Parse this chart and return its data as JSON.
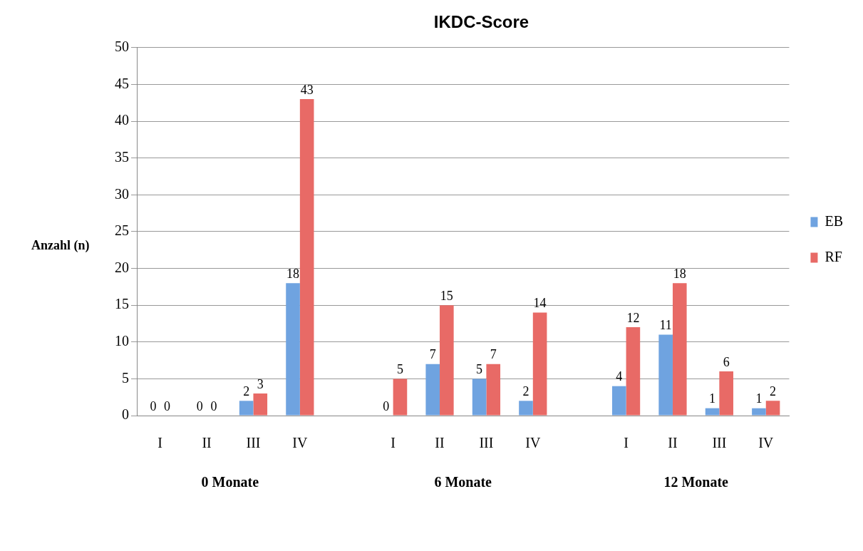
{
  "chart_data": {
    "type": "bar",
    "title": "IKDC-Score",
    "ylabel": "Anzahl (n)",
    "categories": [
      "I",
      "II",
      "III",
      "IV",
      null,
      "I",
      "II",
      "III",
      "IV",
      null,
      "I",
      "II",
      "III",
      "IV"
    ],
    "series": [
      {
        "name": "EB",
        "color": "#6fa3e0",
        "values": [
          0,
          0,
          2,
          18,
          null,
          0,
          7,
          5,
          2,
          null,
          4,
          11,
          1,
          1
        ]
      },
      {
        "name": "RF",
        "color": "#e86a66",
        "values": [
          0,
          0,
          3,
          43,
          null,
          5,
          15,
          7,
          14,
          null,
          12,
          18,
          6,
          2
        ]
      }
    ],
    "ylim": [
      0,
      50
    ],
    "yticks": [
      0,
      5,
      10,
      15,
      20,
      25,
      30,
      35,
      40,
      45,
      50
    ],
    "grid": "y",
    "legend": "right",
    "data_labels": true,
    "annotations": [
      "0 Monate",
      "6 Monate",
      "12 Monate"
    ]
  }
}
